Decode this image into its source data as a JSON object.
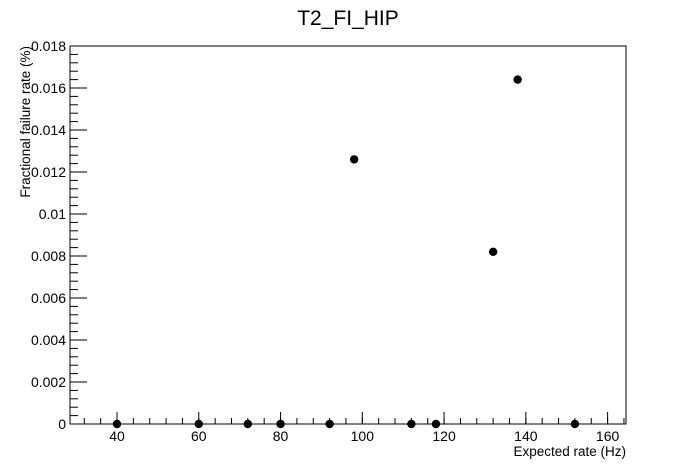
{
  "chart_data": {
    "type": "scatter",
    "title": "T2_FI_HIP",
    "xlabel": "Expected rate (Hz)",
    "ylabel": "Fractional failure rate (%)",
    "xlim": [
      28.5,
      164.5
    ],
    "ylim": [
      0,
      0.018
    ],
    "x_major_ticks": [
      40,
      60,
      80,
      100,
      120,
      140,
      160
    ],
    "x_major_tick_labels": [
      "40",
      "60",
      "80",
      "100",
      "120",
      "140",
      "160"
    ],
    "x_minor_step": 4,
    "y_major_ticks": [
      0,
      0.002,
      0.004,
      0.006,
      0.008,
      0.01,
      0.012,
      0.014,
      0.016,
      0.018
    ],
    "y_major_tick_labels": [
      "0",
      "0.002",
      "0.004",
      "0.006",
      "0.008",
      "0.01",
      "0.012",
      "0.014",
      "0.016",
      "0.018"
    ],
    "y_minor_step": 0.0004,
    "grid": false,
    "legend": "none",
    "marker_color": "#000000",
    "points": [
      {
        "x": 40,
        "y": 0
      },
      {
        "x": 60,
        "y": 0
      },
      {
        "x": 72,
        "y": 0
      },
      {
        "x": 80,
        "y": 0
      },
      {
        "x": 92,
        "y": 0
      },
      {
        "x": 98,
        "y": 0.0126
      },
      {
        "x": 112,
        "y": 0
      },
      {
        "x": 118,
        "y": 0
      },
      {
        "x": 132,
        "y": 0.0082
      },
      {
        "x": 138,
        "y": 0.0164
      },
      {
        "x": 152,
        "y": 0
      }
    ]
  }
}
